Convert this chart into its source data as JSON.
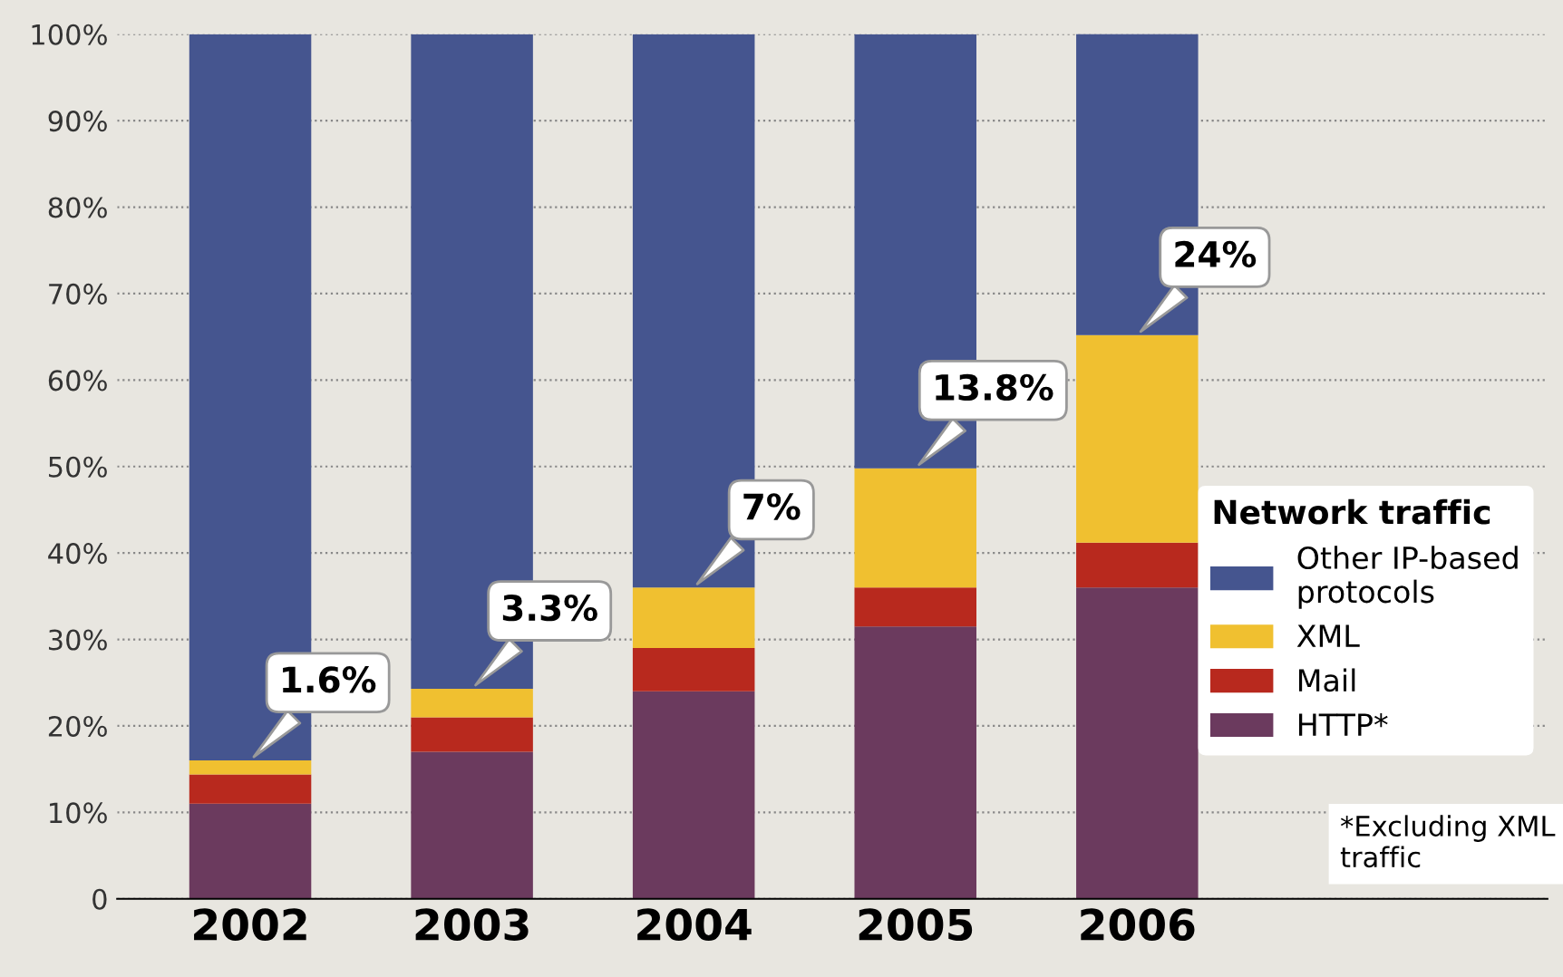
{
  "chart_data": {
    "type": "bar",
    "stacked": true,
    "categories": [
      "2002",
      "2003",
      "2004",
      "2005",
      "2006"
    ],
    "series": [
      {
        "name": "HTTP*",
        "color": "#6b3a5e",
        "values": [
          11,
          17,
          24,
          31.5,
          36
        ]
      },
      {
        "name": "Mail",
        "color": "#b8291e",
        "values": [
          3.4,
          4,
          5,
          4.5,
          5.2
        ]
      },
      {
        "name": "XML",
        "color": "#f0c030",
        "values": [
          1.6,
          3.3,
          7,
          13.8,
          24
        ],
        "value_labels": [
          "1.6%",
          "3.3%",
          "7%",
          "13.8%",
          "24%"
        ]
      },
      {
        "name": "Other IP-based protocols",
        "color": "#45558f",
        "values": [
          84,
          75.7,
          64,
          50.2,
          35
        ]
      }
    ],
    "ylim": [
      0,
      100
    ],
    "yticks": [
      {
        "value": 0,
        "label": "0"
      },
      {
        "value": 10,
        "label": "10%"
      },
      {
        "value": 20,
        "label": "20%"
      },
      {
        "value": 30,
        "label": "30%"
      },
      {
        "value": 40,
        "label": "40%"
      },
      {
        "value": 50,
        "label": "50%"
      },
      {
        "value": 60,
        "label": "60%"
      },
      {
        "value": 70,
        "label": "70%"
      },
      {
        "value": 80,
        "label": "80%"
      },
      {
        "value": 90,
        "label": "90%"
      },
      {
        "value": 100,
        "label": "100%"
      }
    ],
    "grid": "y",
    "legend": "bottom right",
    "legend_title": "Network traffic",
    "annotations": [
      "*Excluding XML traffic"
    ]
  }
}
